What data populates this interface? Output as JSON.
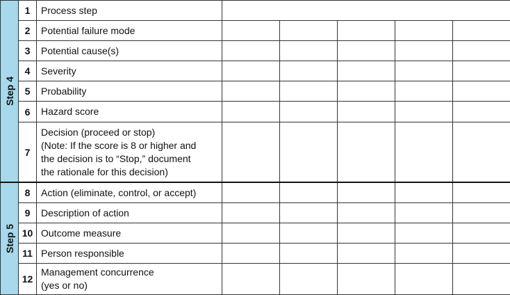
{
  "steps": [
    {
      "label": "Step 4"
    },
    {
      "label": "Step 5"
    }
  ],
  "rows": [
    {
      "num": "1",
      "label": "Process step"
    },
    {
      "num": "2",
      "label": "Potential failure mode"
    },
    {
      "num": "3",
      "label": "Potential cause(s)"
    },
    {
      "num": "4",
      "label": "Severity"
    },
    {
      "num": "5",
      "label": "Probability"
    },
    {
      "num": "6",
      "label": "Hazard score"
    },
    {
      "num": "7",
      "label": "Decision (proceed or stop)",
      "note": [
        "(Note: If the score is 8 or higher and",
        "the decision is to “Stop,” document",
        "the rationale for this decision)"
      ]
    },
    {
      "num": "8",
      "label": "Action (eliminate, control, or accept)"
    },
    {
      "num": "9",
      "label": "Description of action"
    },
    {
      "num": "10",
      "label": "Outcome measure"
    },
    {
      "num": "11",
      "label": "Person responsible"
    },
    {
      "num": "12",
      "label": "Management concurrence",
      "note": [
        "(yes or no)"
      ]
    }
  ],
  "colors": {
    "step_band": "#a8d8ec",
    "border": "#333333"
  }
}
